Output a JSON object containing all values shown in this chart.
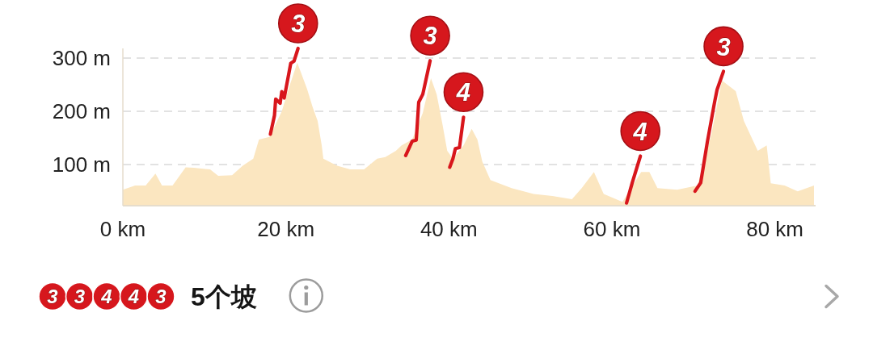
{
  "chart_data": [
    {
      "type": "area",
      "xlim": [
        0,
        85
      ],
      "ylim": [
        23,
        318
      ],
      "xticks": [
        {
          "value": 0,
          "label": "0 km"
        },
        {
          "value": 20,
          "label": "20 km"
        },
        {
          "value": 40,
          "label": "40 km"
        },
        {
          "value": 60,
          "label": "60 km"
        },
        {
          "value": 80,
          "label": "80 km"
        }
      ],
      "yticks": [
        {
          "value": 100,
          "label": "100 m"
        },
        {
          "value": 200,
          "label": "200 m"
        },
        {
          "value": 300,
          "label": "300 m"
        }
      ],
      "grid": "y",
      "series": [
        {
          "type": "area",
          "color": "#fbe6c0",
          "x": [
            0,
            1.5,
            2.8,
            4,
            4.8,
            6.1,
            7.7,
            8.7,
            10.7,
            11.7,
            13.4,
            14.7,
            16,
            16.7,
            18,
            19.5,
            20.5,
            21.4,
            22.6,
            23.3,
            23.9,
            24.4,
            24.6,
            25.9,
            26.3,
            27.9,
            29.6,
            31.2,
            32.2,
            33.5,
            34.2,
            35.5,
            36.8,
            37.8,
            38.5,
            39.2,
            39.8,
            40.5,
            41.8,
            42.8,
            43.5,
            44.1,
            45.1,
            47.7,
            50.4,
            52.7,
            55.1,
            56.3,
            57.8,
            59,
            61.3,
            63.6,
            64.6,
            65.6,
            68,
            70.5,
            72.2,
            73.5,
            75.2,
            76.2,
            77.9,
            79,
            79.5,
            81.2,
            82.8,
            84.8
          ],
          "values": [
            53,
            61,
            61,
            83,
            61,
            61,
            95,
            94,
            91,
            79,
            80,
            98,
            111,
            147,
            152,
            200,
            250,
            291,
            242,
            207,
            182,
            136,
            111,
            101,
            98,
            91,
            91,
            111,
            114,
            126,
            136,
            147,
            197,
            262,
            232,
            177,
            126,
            111,
            136,
            167,
            147,
            106,
            71,
            56,
            45,
            41,
            35,
            56,
            86,
            45,
            30,
            86,
            86,
            56,
            53,
            61,
            156,
            258,
            238,
            182,
            126,
            136,
            65,
            61,
            50,
            61
          ]
        },
        {
          "type": "line",
          "color": "#d8161c",
          "x": [
            18.1,
            18.6,
            18.75,
            19.3,
            19.5,
            19.8,
            20.6,
            21,
            21.5
          ],
          "values": [
            157,
            192,
            223,
            215,
            237,
            225,
            290,
            294,
            318
          ]
        },
        {
          "type": "line",
          "color": "#d8161c",
          "x": [
            34.7,
            35.5,
            36,
            36.3,
            36.8,
            37.7
          ],
          "values": [
            117,
            144,
            146,
            217,
            232,
            295
          ]
        },
        {
          "type": "line",
          "color": "#d8161c",
          "x": [
            40.1,
            40.5,
            40.8,
            41.3,
            41.8
          ],
          "values": [
            95,
            111,
            130,
            132,
            189
          ]
        },
        {
          "type": "line",
          "color": "#d8161c",
          "x": [
            61.8,
            62.5,
            63.5
          ],
          "values": [
            28,
            66,
            116
          ]
        },
        {
          "type": "line",
          "color": "#d8161c",
          "x": [
            70.2,
            70.9,
            71.7,
            72.6,
            72.9,
            73.7
          ],
          "values": [
            50,
            66,
            141,
            217,
            240,
            275
          ]
        }
      ],
      "annotations": [
        {
          "text": "3",
          "x": 21.5,
          "y": 318
        },
        {
          "text": "3",
          "x": 37.7,
          "y": 295
        },
        {
          "text": "4",
          "x": 41.8,
          "y": 189
        },
        {
          "text": "4",
          "x": 63.5,
          "y": 116
        },
        {
          "text": "3",
          "x": 73.7,
          "y": 275
        }
      ]
    },
    {
      "type": "other",
      "title": "5个坡",
      "annotations": [
        "3",
        "3",
        "4",
        "4",
        "3"
      ]
    }
  ]
}
